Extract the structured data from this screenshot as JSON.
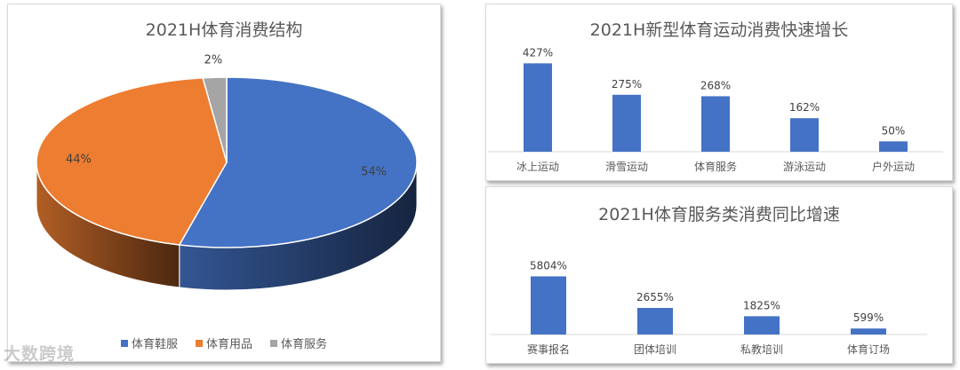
{
  "colors": {
    "blue": "#4472c4",
    "orange": "#ed7d31",
    "gray": "#a5a5a5",
    "axis": "#d9d9d9"
  },
  "watermark": "大数跨境",
  "chart_data": [
    {
      "type": "pie",
      "title": "2021H体育消费结构",
      "legend_position": "bottom",
      "slices": [
        {
          "name": "体育鞋服",
          "value": 54,
          "label": "54%",
          "color": "#4472c4"
        },
        {
          "name": "体育用品",
          "value": 44,
          "label": "44%",
          "color": "#ed7d31"
        },
        {
          "name": "体育服务",
          "value": 2,
          "label": "2%",
          "color": "#a5a5a5"
        }
      ]
    },
    {
      "type": "bar",
      "title": "2021H新型体育运动消费快速增长",
      "categories": [
        "冰上运动",
        "滑雪运动",
        "体育服务",
        "游泳运动",
        "户外运动"
      ],
      "values": [
        427,
        275,
        268,
        162,
        50
      ],
      "labels": [
        "427%",
        "275%",
        "268%",
        "162%",
        "50%"
      ],
      "ylim": [
        0,
        450
      ],
      "grid": false
    },
    {
      "type": "bar",
      "title": "2021H体育服务类消费同比增速",
      "categories": [
        "赛事报名",
        "团体培训",
        "私教培训",
        "体育订场"
      ],
      "values": [
        5804,
        2655,
        1825,
        599
      ],
      "labels": [
        "5804%",
        "2655%",
        "1825%",
        "599%"
      ],
      "ylim": [
        0,
        6200
      ],
      "grid": false
    }
  ]
}
